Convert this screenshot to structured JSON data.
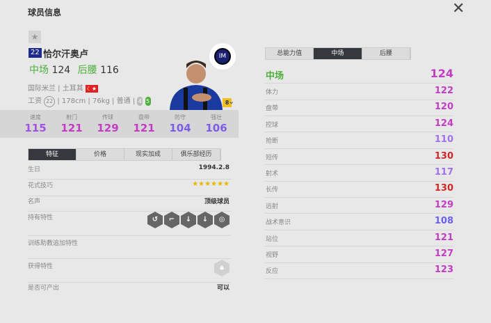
{
  "title": "球员信息",
  "close_icon": "close-icon",
  "player": {
    "number": "22",
    "name": "恰尔汗奥卢",
    "pos1": "中场",
    "pos1_val": "124",
    "pos2": "后腰",
    "pos2_val": "116",
    "club": "国际米兰",
    "nation": "土耳其",
    "flag": "☾★",
    "wage_label": "工资",
    "wage": "22",
    "height": "178cm",
    "weight": "76kg",
    "body": "普通",
    "weak_foot": "4",
    "strong_foot": "5",
    "level": "8"
  },
  "stats": [
    {
      "label": "速度",
      "value": "115",
      "color": "#a052e0"
    },
    {
      "label": "射门",
      "value": "121",
      "color": "#c23cc4"
    },
    {
      "label": "传球",
      "value": "129",
      "color": "#c23cc4"
    },
    {
      "label": "盘带",
      "value": "121",
      "color": "#c23cc4"
    },
    {
      "label": "防守",
      "value": "104",
      "color": "#7a5ee6"
    },
    {
      "label": "强壮",
      "value": "106",
      "color": "#7a5ee6"
    }
  ],
  "left_tabs": [
    "特征",
    "价格",
    "现实加成",
    "俱乐部经历"
  ],
  "info": {
    "birthday_label": "生日",
    "birthday": "1994.2.8",
    "skill_label": "花式技巧",
    "skill_stars": 6,
    "fame_label": "名声",
    "fame": "顶级球员",
    "traits_label": "持有特性",
    "coach_label": "训练助教追加特性",
    "acquired_label": "获得特性",
    "producible_label": "是否可产出",
    "producible": "可以"
  },
  "right_tabs": [
    "总能力值",
    "中场",
    "后腰"
  ],
  "right_header": {
    "label": "中场",
    "value": "124"
  },
  "attributes": [
    {
      "label": "体力",
      "value": "122",
      "color": "#c23cc4"
    },
    {
      "label": "盘带",
      "value": "120",
      "color": "#c23cc4"
    },
    {
      "label": "控球",
      "value": "124",
      "color": "#c23cc4"
    },
    {
      "label": "抢断",
      "value": "110",
      "color": "#a070f0"
    },
    {
      "label": "短传",
      "value": "130",
      "color": "#d02828"
    },
    {
      "label": "射术",
      "value": "117",
      "color": "#a070f0"
    },
    {
      "label": "长传",
      "value": "130",
      "color": "#d02828"
    },
    {
      "label": "远射",
      "value": "129",
      "color": "#c23cc4"
    },
    {
      "label": "战术意识",
      "value": "108",
      "color": "#6a60f0"
    },
    {
      "label": "站位",
      "value": "121",
      "color": "#c23cc4"
    },
    {
      "label": "视野",
      "value": "127",
      "color": "#c23cc4"
    },
    {
      "label": "反应",
      "value": "123",
      "color": "#c23cc4"
    }
  ]
}
